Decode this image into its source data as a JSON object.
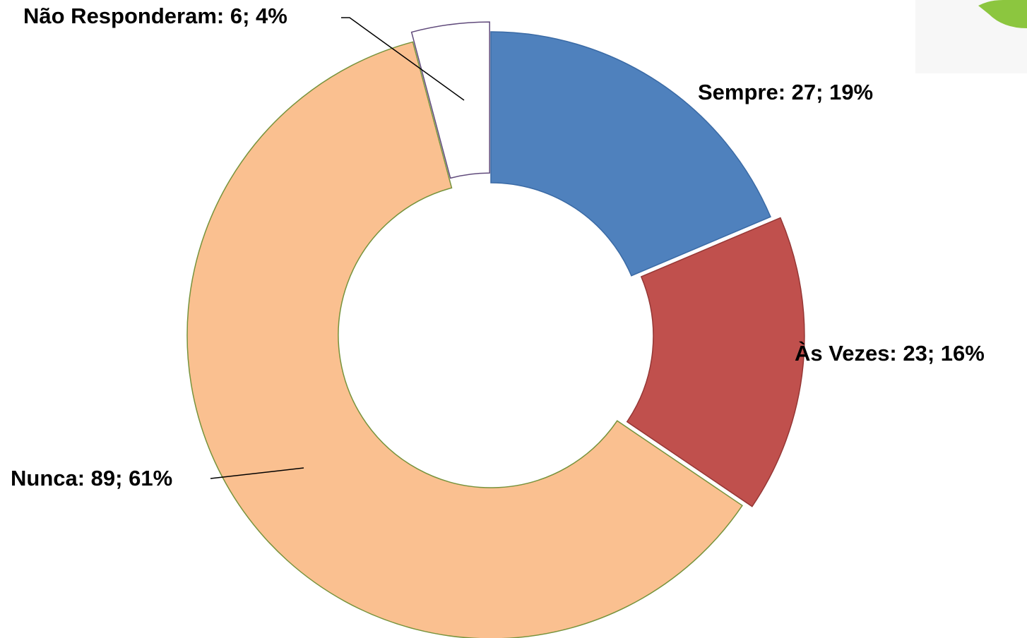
{
  "chart_data": {
    "type": "donut",
    "values": [
      27,
      23,
      89,
      6
    ],
    "value_labels": [
      "Sempre: 27; 19%",
      "Às Vezes: 23; 16%",
      "Nunca: 89; 61%",
      "Não Responderam: 6; 4%"
    ],
    "colors": [
      "#4f81bd",
      "#c0504d",
      "#fac090",
      "#ffffff"
    ],
    "stroke_colors": [
      "#3a6aa5",
      "#953735",
      "#77933c",
      "#604a7b"
    ]
  }
}
